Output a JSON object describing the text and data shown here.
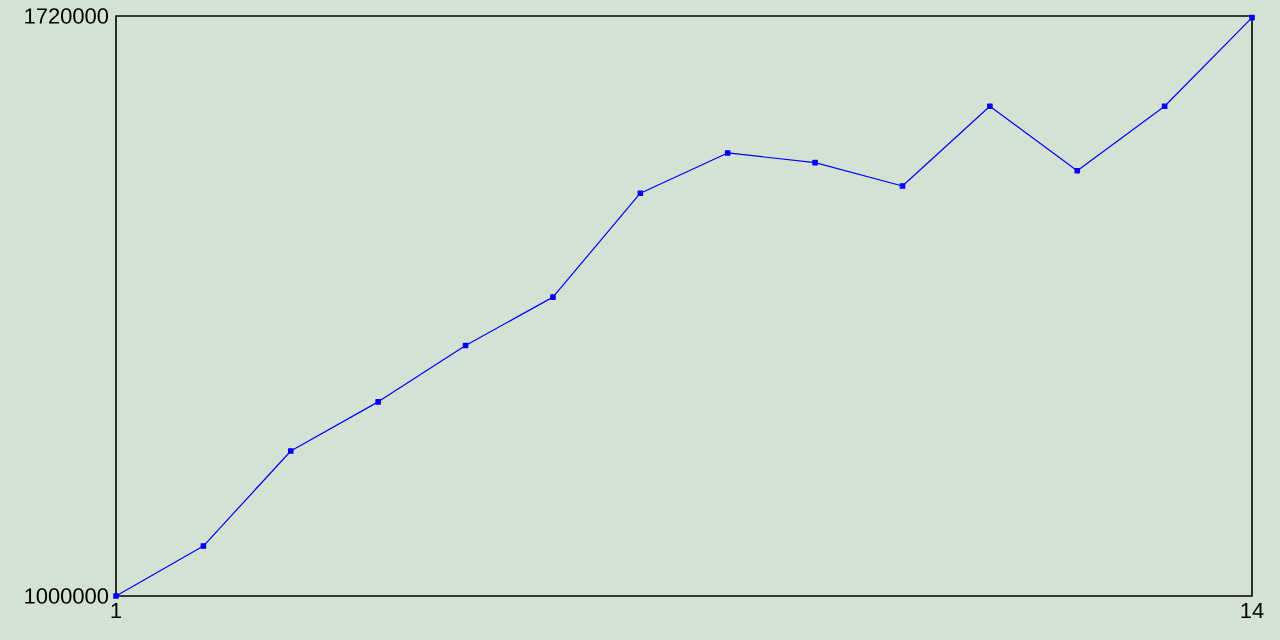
{
  "chart_data": {
    "type": "line",
    "x": [
      1,
      2,
      3,
      4,
      5,
      6,
      7,
      8,
      9,
      10,
      11,
      12,
      13,
      14
    ],
    "series": [
      {
        "color": "#0000ff",
        "values": [
          1000000,
          1062000,
          1180000,
          1241000,
          1311000,
          1371000,
          1500000,
          1550000,
          1538000,
          1509000,
          1608000,
          1528000,
          1608000,
          1718000
        ]
      }
    ],
    "xlim": [
      1,
      14
    ],
    "ylim": [
      1000000,
      1720000
    ],
    "xticks": [
      1,
      14
    ],
    "yticks": [
      1000000,
      1720000
    ],
    "marker": "square",
    "line_style": "solid"
  }
}
